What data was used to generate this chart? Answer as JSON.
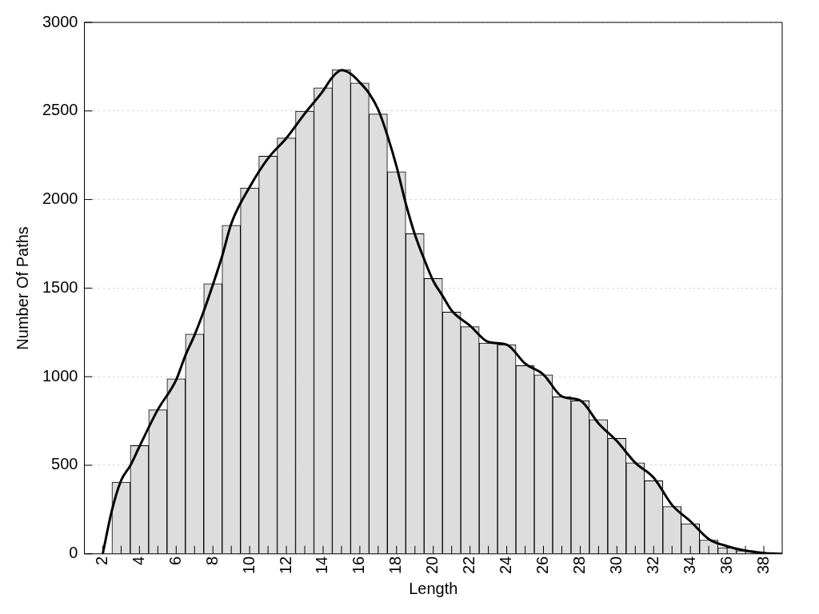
{
  "chart_data": {
    "type": "histogram",
    "xlabel": "Length",
    "ylabel": "Number Of Paths",
    "xlim": [
      1,
      39
    ],
    "ylim": [
      0,
      3000
    ],
    "xticks": [
      2,
      {
        "value": 3,
        "label": null
      },
      4,
      {
        "value": 5,
        "label": null
      },
      6,
      {
        "value": 7,
        "label": null
      },
      8,
      {
        "value": 9,
        "label": null
      },
      10,
      {
        "value": 11,
        "label": null
      },
      12,
      {
        "value": 13,
        "label": null
      },
      14,
      {
        "value": 15,
        "label": null
      },
      16,
      {
        "value": 17,
        "label": null
      },
      18,
      {
        "value": 19,
        "label": null
      },
      20,
      {
        "value": 21,
        "label": null
      },
      22,
      {
        "value": 23,
        "label": null
      },
      24,
      {
        "value": 25,
        "label": null
      },
      26,
      {
        "value": 27,
        "label": null
      },
      28,
      {
        "value": 29,
        "label": null
      },
      30,
      {
        "value": 31,
        "label": null
      },
      32,
      {
        "value": 33,
        "label": null
      },
      34,
      {
        "value": 35,
        "label": null
      },
      36,
      {
        "value": 37,
        "label": null
      },
      38
    ],
    "yticks": [
      0,
      500,
      1000,
      1500,
      2000,
      2500,
      3000
    ],
    "grid": "y",
    "legend": false,
    "series": [
      {
        "color": "#dddddd",
        "bins": [
          2.5,
          3.5,
          4.5,
          5.5,
          6.5,
          7.5,
          8.5,
          9.5,
          10.5,
          11.5,
          12.5,
          13.5,
          14.5,
          15.5,
          16.5,
          17.5,
          18.5,
          19.5,
          20.5,
          21.5,
          22.5,
          23.5,
          24.5,
          25.5,
          26.5,
          27.5,
          28.5,
          29.5,
          30.5,
          31.5,
          32.5,
          33.5,
          34.5,
          35.5,
          36.5,
          37.5,
          38.5
        ],
        "values": [
          405,
          611,
          813,
          988,
          1241,
          1525,
          1855,
          2066,
          2245,
          2347,
          2499,
          2631,
          2733,
          2658,
          2483,
          2157,
          1807,
          1554,
          1365,
          1282,
          1190,
          1181,
          1062,
          1011,
          887,
          864,
          758,
          652,
          514,
          413,
          267,
          170,
          78,
          35,
          18,
          5
        ]
      },
      {
        "type": "line",
        "color": "#000000",
        "marker": "none",
        "x": [
          2,
          2.5,
          3,
          3.5,
          4,
          5,
          6,
          6.5,
          7,
          7.5,
          8,
          8.5,
          9,
          10,
          11,
          12,
          13,
          14,
          14.5,
          15,
          15.5,
          16,
          16.5,
          17,
          17.5,
          18,
          18.5,
          19,
          19.5,
          20,
          20.5,
          21,
          22,
          23,
          24,
          25,
          26,
          27,
          28,
          29,
          30,
          31,
          32,
          33,
          34,
          35,
          36,
          37,
          38,
          39
        ],
        "values": [
          0,
          245,
          414,
          498,
          606,
          814,
          982,
          1120,
          1235,
          1370,
          1520,
          1680,
          1864,
          2070,
          2232,
          2347,
          2485,
          2614,
          2690,
          2730,
          2710,
          2661,
          2600,
          2508,
          2362,
          2186,
          1978,
          1802,
          1664,
          1540,
          1457,
          1373,
          1288,
          1196,
          1181,
          1074,
          1012,
          889,
          866,
          736,
          636,
          514,
          430,
          276,
          184,
          84,
          43,
          18,
          5,
          0
        ]
      }
    ]
  }
}
